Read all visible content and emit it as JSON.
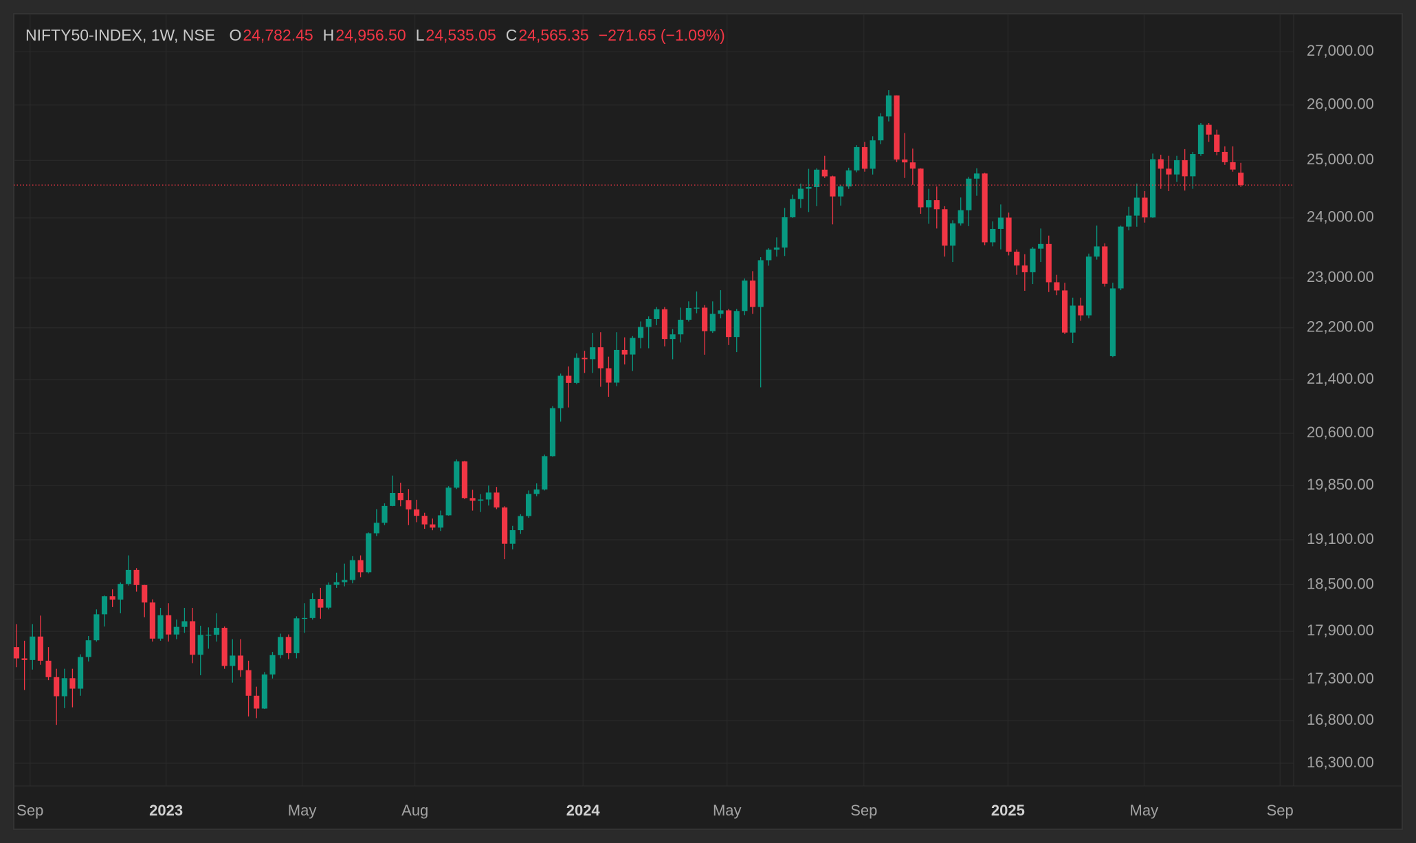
{
  "chart_data": {
    "type": "candlestick",
    "title": "NIFTY50-INDEX, 1W, NSE",
    "ohlc_legend": [
      {
        "key": "O",
        "value": "24,782.45"
      },
      {
        "key": "H",
        "value": "24,956.50"
      },
      {
        "key": "L",
        "value": "24,535.05"
      },
      {
        "key": "C",
        "value": "24,565.35"
      }
    ],
    "change": "−271.65 (−1.09%)",
    "up_color": "#089981",
    "down_color": "#f23645",
    "log_scale": true,
    "grid": true,
    "last_price_line": true,
    "ylim": [
      16040,
      27740
    ],
    "yticks": [
      {
        "value": 16300,
        "label": "16,300.00"
      },
      {
        "value": 16800,
        "label": "16,800.00"
      },
      {
        "value": 17300,
        "label": "17,300.00"
      },
      {
        "value": 17900,
        "label": "17,900.00"
      },
      {
        "value": 18500,
        "label": "18,500.00"
      },
      {
        "value": 19100,
        "label": "19,100.00"
      },
      {
        "value": 19850,
        "label": "19,850.00"
      },
      {
        "value": 20600,
        "label": "20,600.00"
      },
      {
        "value": 21400,
        "label": "21,400.00"
      },
      {
        "value": 22200,
        "label": "22,200.00"
      },
      {
        "value": 23000,
        "label": "23,000.00"
      },
      {
        "value": 24000,
        "label": "24,000.00"
      },
      {
        "value": 25000,
        "label": "25,000.00"
      },
      {
        "value": 26000,
        "label": "26,000.00"
      },
      {
        "value": 27000,
        "label": "27,000.00"
      }
    ],
    "xlim": [
      -0.34,
      159.6
    ],
    "xticks": [
      {
        "value": 1.7,
        "label": "Sep"
      },
      {
        "value": 18.7,
        "label": "2023"
      },
      {
        "value": 35.7,
        "label": "May"
      },
      {
        "value": 49.8,
        "label": "Aug"
      },
      {
        "value": 70.8,
        "label": "2024"
      },
      {
        "value": 88.8,
        "label": "May"
      },
      {
        "value": 105.9,
        "label": "Sep"
      },
      {
        "value": 123.9,
        "label": "2025"
      },
      {
        "value": 140.9,
        "label": "May"
      },
      {
        "value": 157.9,
        "label": "Sep"
      }
    ],
    "open": [
      17700,
      17559,
      17539,
      17833,
      17530,
      17327,
      17094,
      17314,
      17186,
      17576,
      17786,
      18117,
      18350,
      18307,
      18512,
      18696,
      18497,
      18269,
      17807,
      18105,
      17859,
      17956,
      18028,
      17604,
      17854,
      17856,
      17944,
      17465,
      17594,
      17413,
      17100,
      16945,
      17360,
      17600,
      17828,
      17624,
      18065,
      18069,
      18315,
      18203,
      18499,
      18534,
      18563,
      18826,
      18665,
      19189,
      19332,
      19564,
      19745,
      19646,
      19517,
      19428,
      19310,
      19266,
      19435,
      19820,
      20192,
      19674,
      19638,
      19654,
      19751,
      19543,
      19047,
      19231,
      19425,
      19732,
      19795,
      20268,
      20970,
      21457,
      21349,
      21731,
      21711,
      21895,
      21572,
      21353,
      21854,
      21783,
      22041,
      22213,
      22339,
      22494,
      22023,
      22097,
      22327,
      22514,
      22519,
      22147,
      22420,
      22476,
      22055,
      22466,
      22957,
      22531,
      23290,
      23466,
      23501,
      24011,
      24324,
      24502,
      24531,
      24835,
      24718,
      24368,
      24541,
      24823,
      25236,
      24852,
      25357,
      25791,
      26179,
      25015,
      24964,
      24854,
      24181,
      24304,
      24148,
      23532,
      23907,
      24131,
      24678,
      24768,
      23588,
      23813,
      24005,
      23432,
      23203,
      23092,
      23482,
      23560,
      22929,
      22796,
      22125,
      22552,
      22397,
      23350,
      23519,
      21758,
      22829,
      23852,
      24039,
      24347,
      24008,
      25020,
      24853,
      24751,
      25003,
      24719,
      25112,
      25638,
      25461,
      25150,
      24968,
      24782.45
    ],
    "high": [
      17990,
      17780,
      17990,
      18100,
      17700,
      17430,
      17430,
      17430,
      17610,
      17840,
      18180,
      18360,
      18440,
      18530,
      18890,
      18720,
      18500,
      18310,
      18200,
      18260,
      18050,
      18200,
      18200,
      17970,
      17950,
      18130,
      17960,
      17800,
      17800,
      17530,
      17210,
      17390,
      17640,
      17870,
      17860,
      18090,
      18260,
      18390,
      18460,
      18530,
      18660,
      18780,
      18880,
      18890,
      19200,
      19520,
      19600,
      19990,
      19890,
      19800,
      19650,
      19470,
      19390,
      19500,
      19840,
      20220,
      20200,
      19790,
      19730,
      19850,
      19830,
      19560,
      19290,
      19450,
      19780,
      19880,
      20290,
      21000,
      21490,
      21600,
      21800,
      21840,
      22120,
      22130,
      21750,
      22130,
      22050,
      22070,
      22300,
      22380,
      22530,
      22530,
      22180,
      22520,
      22620,
      22780,
      22560,
      22620,
      22800,
      22500,
      22500,
      22990,
      23110,
      23340,
      23490,
      23670,
      24170,
      24400,
      24590,
      24850,
      24860,
      25080,
      24730,
      24570,
      24870,
      25270,
      25330,
      25430,
      25850,
      26277,
      26180,
      25490,
      25210,
      24860,
      24500,
      24540,
      24200,
      23960,
      24350,
      24710,
      24860,
      24780,
      23940,
      24230,
      24090,
      23470,
      23390,
      23510,
      23820,
      23700,
      23050,
      22920,
      22680,
      22680,
      23400,
      23870,
      23570,
      22920,
      23870,
      24190,
      24590,
      24460,
      25120,
      25100,
      25080,
      25080,
      25200,
      25150,
      25670,
      25670,
      25550,
      25250,
      25250,
      24956.5
    ],
    "low": [
      17450,
      17170,
      17420,
      17480,
      17290,
      16750,
      16950,
      16960,
      17100,
      17520,
      17770,
      17960,
      18210,
      18130,
      18490,
      18410,
      18080,
      17770,
      17780,
      17770,
      17800,
      17880,
      17500,
      17350,
      17680,
      17770,
      17430,
      17260,
      17330,
      16850,
      16830,
      16940,
      17310,
      17560,
      17550,
      17560,
      17880,
      18050,
      18060,
      18180,
      18460,
      18480,
      18520,
      18600,
      18650,
      19150,
      19300,
      19560,
      19560,
      19300,
      19340,
      19250,
      19230,
      19220,
      19430,
      19800,
      19660,
      19500,
      19480,
      19570,
      19520,
      18840,
      18970,
      19180,
      19400,
      19700,
      19780,
      20260,
      20770,
      20980,
      21330,
      21500,
      21500,
      21290,
      21140,
      21300,
      21630,
      21530,
      21880,
      21880,
      22240,
      21910,
      21710,
      21970,
      22300,
      22430,
      21780,
      22120,
      22350,
      21930,
      21820,
      22400,
      22420,
      21281,
      23200,
      23350,
      23360,
      24000,
      24170,
      24100,
      24200,
      24690,
      23890,
      24210,
      24500,
      24790,
      24800,
      24750,
      25290,
      25700,
      24970,
      24690,
      24570,
      24070,
      23900,
      23820,
      23350,
      23260,
      23870,
      23860,
      24380,
      23540,
      23520,
      23470,
      23370,
      23050,
      22790,
      22900,
      23260,
      22770,
      22720,
      22100,
      21960,
      22310,
      22350,
      23300,
      22860,
      21743,
      22800,
      23790,
      23850,
      23920,
      24000,
      24500,
      24460,
      24620,
      24470,
      24500,
      25080,
      25330,
      25090,
      24920,
      24800,
      24535.05
    ],
    "close": [
      17559,
      17539,
      17833,
      17530,
      17327,
      17094,
      17314,
      17186,
      17576,
      17786,
      18117,
      18350,
      18307,
      18512,
      18696,
      18497,
      18269,
      17807,
      18105,
      17859,
      17956,
      18028,
      17604,
      17854,
      17856,
      17944,
      17465,
      17594,
      17413,
      17100,
      16945,
      17360,
      17600,
      17828,
      17624,
      18065,
      18069,
      18315,
      18203,
      18499,
      18534,
      18563,
      18826,
      18665,
      19189,
      19332,
      19564,
      19745,
      19646,
      19517,
      19428,
      19310,
      19266,
      19435,
      19820,
      20192,
      19674,
      19638,
      19654,
      19751,
      19543,
      19047,
      19231,
      19425,
      19732,
      19795,
      20268,
      20970,
      21457,
      21349,
      21731,
      21711,
      21895,
      21572,
      21353,
      21854,
      21783,
      22041,
      22213,
      22339,
      22494,
      22023,
      22097,
      22327,
      22514,
      22519,
      22147,
      22420,
      22476,
      22055,
      22466,
      22957,
      22531,
      23290,
      23466,
      23501,
      24011,
      24324,
      24502,
      24531,
      24835,
      24718,
      24368,
      24541,
      24823,
      25236,
      24852,
      25357,
      25791,
      26179,
      25015,
      24964,
      24854,
      24181,
      24304,
      24148,
      23532,
      23907,
      24131,
      24678,
      24768,
      23588,
      23813,
      24005,
      23432,
      23203,
      23092,
      23482,
      23560,
      22929,
      22796,
      22125,
      22552,
      22397,
      23350,
      23519,
      22904,
      22829,
      23852,
      24039,
      24347,
      24008,
      25020,
      24853,
      24751,
      25003,
      24719,
      25112,
      25638,
      25461,
      25150,
      24968,
      24837,
      24565.35
    ]
  }
}
